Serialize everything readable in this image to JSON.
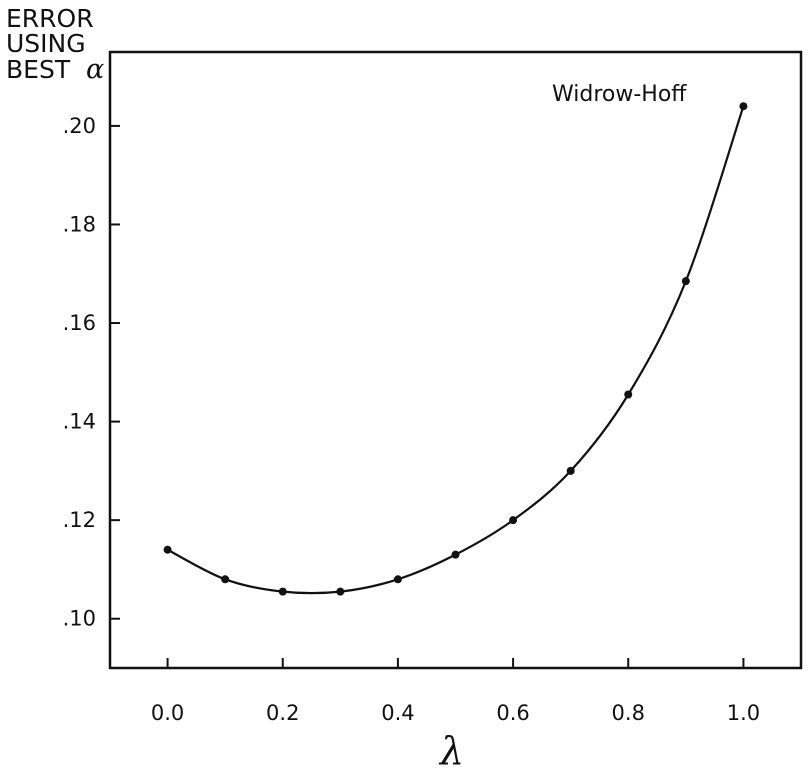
{
  "chart_data": {
    "type": "line",
    "x": [
      0.0,
      0.1,
      0.2,
      0.3,
      0.4,
      0.5,
      0.6,
      0.7,
      0.8,
      0.9,
      1.0
    ],
    "series": [
      {
        "values": [
          0.114,
          0.108,
          0.1055,
          0.1055,
          0.108,
          0.113,
          0.12,
          0.13,
          0.1455,
          0.1685,
          0.204
        ]
      }
    ],
    "xlabel": "λ",
    "ylabel_lines": [
      "ERROR",
      "USING",
      "BEST"
    ],
    "ylabel_symbol": "α",
    "annotation": "Widrow-Hoff",
    "xlim": [
      -0.1,
      1.1
    ],
    "ylim": [
      0.09,
      0.215
    ],
    "xticks": [
      0.0,
      0.2,
      0.4,
      0.6,
      0.8,
      1.0
    ],
    "xtick_labels": [
      "0.0",
      "0.2",
      "0.4",
      "0.6",
      "0.8",
      "1.0"
    ],
    "yticks": [
      0.1,
      0.12,
      0.14,
      0.16,
      0.18,
      0.2
    ],
    "ytick_labels": [
      ".10",
      ".12",
      ".14",
      ".16",
      ".18",
      ".20"
    ],
    "grid": false,
    "legend": "none",
    "line_color": "#111111",
    "marker_color": "#111111"
  }
}
